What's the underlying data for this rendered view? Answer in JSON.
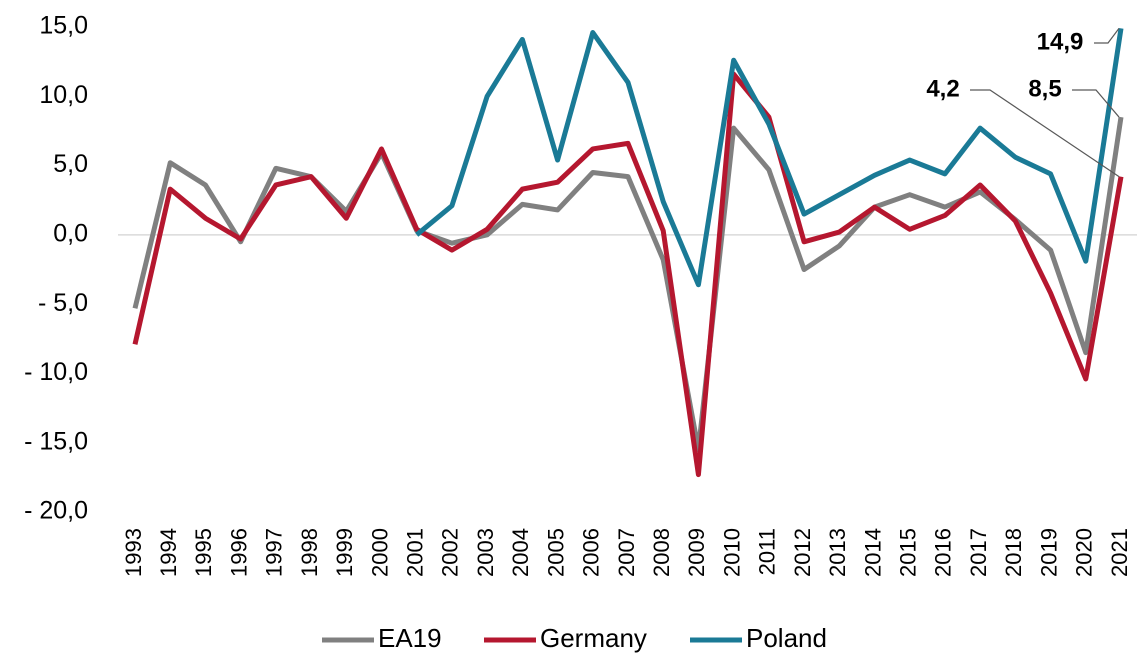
{
  "chart_data": {
    "type": "line",
    "categories": [
      "1993",
      "1994",
      "1995",
      "1996",
      "1997",
      "1998",
      "1999",
      "2000",
      "2001",
      "2002",
      "2003",
      "2004",
      "2005",
      "2006",
      "2007",
      "2008",
      "2009",
      "2010",
      "2011",
      "2012",
      "2013",
      "2014",
      "2015",
      "2016",
      "2017",
      "2018",
      "2019",
      "2020",
      "2021"
    ],
    "series": [
      {
        "name": "EA19",
        "color": "#808080",
        "values": [
          -5.3,
          5.2,
          3.6,
          -0.5,
          4.8,
          4.2,
          1.7,
          5.9,
          0.3,
          -0.6,
          0.0,
          2.2,
          1.8,
          4.5,
          4.2,
          -1.8,
          -15.5,
          7.7,
          4.7,
          -2.5,
          -0.8,
          2.0,
          2.9,
          2.0,
          3.1,
          1.1,
          -1.1,
          -8.5,
          8.5
        ],
        "value_labels": [
          null,
          null,
          null,
          null,
          null,
          null,
          null,
          null,
          null,
          null,
          null,
          null,
          null,
          null,
          null,
          null,
          null,
          null,
          null,
          null,
          null,
          null,
          null,
          null,
          null,
          null,
          null,
          null,
          "8,5"
        ]
      },
      {
        "name": "Germany",
        "color": "#b5172f",
        "values": [
          -7.9,
          3.3,
          1.2,
          -0.3,
          3.6,
          4.2,
          1.2,
          6.2,
          0.4,
          -1.1,
          0.4,
          3.3,
          3.8,
          6.2,
          6.6,
          0.3,
          -17.3,
          11.6,
          8.5,
          -0.5,
          0.2,
          2.0,
          0.4,
          1.4,
          3.6,
          1.0,
          -4.2,
          -10.4,
          4.2
        ],
        "value_labels": [
          null,
          null,
          null,
          null,
          null,
          null,
          null,
          null,
          null,
          null,
          null,
          null,
          null,
          null,
          null,
          null,
          null,
          null,
          null,
          null,
          null,
          null,
          null,
          null,
          null,
          null,
          null,
          null,
          "4,2"
        ]
      },
      {
        "name": "Poland",
        "color": "#1a7a96",
        "values": [
          null,
          null,
          null,
          null,
          null,
          null,
          null,
          null,
          0.0,
          2.1,
          10.0,
          14.1,
          5.4,
          14.6,
          11.0,
          2.4,
          -3.6,
          12.6,
          8.0,
          1.5,
          2.9,
          4.3,
          5.4,
          4.4,
          7.7,
          5.6,
          4.4,
          -1.9,
          14.9
        ],
        "value_labels": [
          null,
          null,
          null,
          null,
          null,
          null,
          null,
          null,
          null,
          null,
          null,
          null,
          null,
          null,
          null,
          null,
          null,
          null,
          null,
          null,
          null,
          null,
          null,
          null,
          null,
          null,
          null,
          null,
          "14,9"
        ]
      }
    ],
    "ylim": [
      -20,
      15
    ],
    "yticks": [
      {
        "value": -20,
        "label": "- 20,0"
      },
      {
        "value": -15,
        "label": "- 15,0"
      },
      {
        "value": -10,
        "label": "- 10,0"
      },
      {
        "value": -5,
        "label": "- 5,0"
      },
      {
        "value": 0,
        "label": "0,0"
      },
      {
        "value": 5,
        "label": "5,0"
      },
      {
        "value": 10,
        "label": "10,0"
      },
      {
        "value": 15,
        "label": "15,0"
      }
    ],
    "legend": "bottom"
  }
}
